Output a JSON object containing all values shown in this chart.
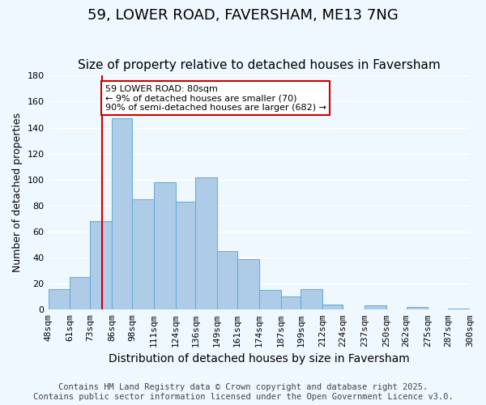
{
  "title": "59, LOWER ROAD, FAVERSHAM, ME13 7NG",
  "subtitle": "Size of property relative to detached houses in Faversham",
  "xlabel": "Distribution of detached houses by size in Faversham",
  "ylabel": "Number of detached properties",
  "bin_labels": [
    "48sqm",
    "61sqm",
    "73sqm",
    "86sqm",
    "98sqm",
    "111sqm",
    "124sqm",
    "136sqm",
    "149sqm",
    "161sqm",
    "174sqm",
    "187sqm",
    "199sqm",
    "212sqm",
    "224sqm",
    "237sqm",
    "250sqm",
    "262sqm",
    "275sqm",
    "287sqm",
    "300sqm"
  ],
  "bin_edges": [
    48,
    61,
    73,
    86,
    98,
    111,
    124,
    136,
    149,
    161,
    174,
    187,
    199,
    212,
    224,
    237,
    250,
    262,
    275,
    287,
    300
  ],
  "bar_heights": [
    16,
    25,
    68,
    147,
    85,
    98,
    83,
    102,
    45,
    39,
    15,
    10,
    16,
    4,
    0,
    3,
    0,
    2,
    0,
    1
  ],
  "bar_color": "#aecce8",
  "bar_edge_color": "#6aaed6",
  "background_color": "#f0f8ff",
  "grid_color": "#ffffff",
  "vline_x": 80,
  "vline_color": "#cc0000",
  "annotation_text": "59 LOWER ROAD: 80sqm\n← 9% of detached houses are smaller (70)\n90% of semi-detached houses are larger (682) →",
  "annotation_box_color": "#ffffff",
  "annotation_box_edge_color": "#cc0000",
  "ylim": [
    0,
    180
  ],
  "yticks": [
    0,
    20,
    40,
    60,
    80,
    100,
    120,
    140,
    160,
    180
  ],
  "footer_line1": "Contains HM Land Registry data © Crown copyright and database right 2025.",
  "footer_line2": "Contains public sector information licensed under the Open Government Licence v3.0.",
  "title_fontsize": 13,
  "subtitle_fontsize": 11,
  "xlabel_fontsize": 10,
  "ylabel_fontsize": 9,
  "tick_fontsize": 8,
  "footer_fontsize": 7.5
}
